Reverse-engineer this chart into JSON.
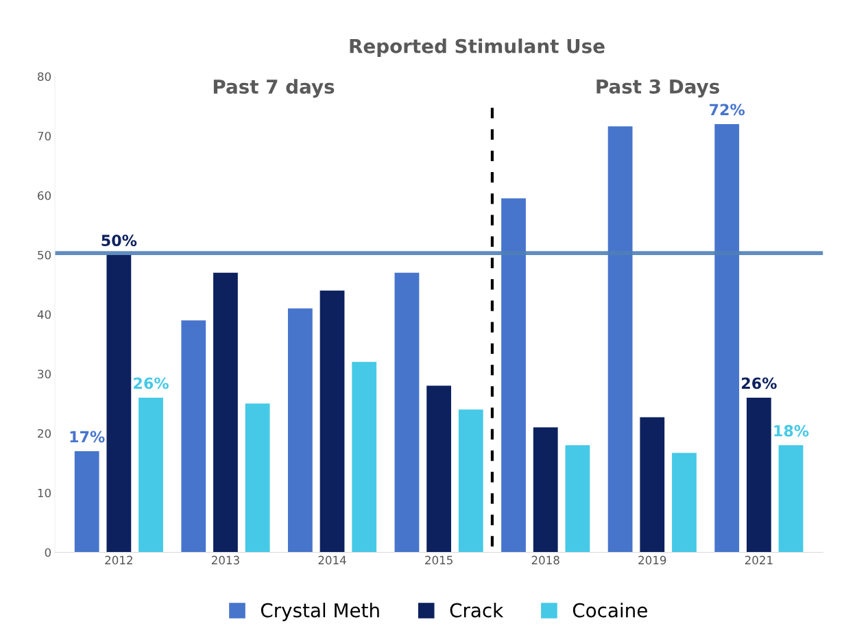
{
  "chart_data": {
    "type": "bar",
    "title": "Reported Stimulant Use",
    "categories": [
      "2012",
      "2013",
      "2014",
      "2015",
      "2018",
      "2019",
      "2021"
    ],
    "series": [
      {
        "name": "Crystal Meth",
        "color": "#4775cc",
        "values": [
          17,
          39,
          41,
          47,
          59.5,
          71.6,
          72
        ],
        "value_labels": [
          "17%",
          null,
          null,
          null,
          null,
          null,
          "72%"
        ]
      },
      {
        "name": "Crack",
        "color": "#0d215e",
        "values": [
          50,
          47,
          44,
          28,
          21,
          22.7,
          26
        ],
        "value_labels": [
          "50%",
          null,
          null,
          null,
          null,
          null,
          "26%"
        ]
      },
      {
        "name": "Cocaine",
        "color": "#45c9e6",
        "values": [
          26,
          25,
          32,
          24,
          18,
          16.7,
          18
        ],
        "value_labels": [
          "26%",
          null,
          null,
          null,
          null,
          null,
          "18%"
        ]
      }
    ],
    "ylim": [
      0,
      80
    ],
    "yticks": [
      0,
      10,
      20,
      30,
      40,
      50,
      60,
      70,
      80
    ],
    "grid": false,
    "legend": "bottom",
    "ref_lines": [
      {
        "axis": "y",
        "value": 50.3,
        "color": "#4f7fb8",
        "line_style": "solid"
      }
    ],
    "annotations": [
      "Past 7 days",
      "Past 3 Days"
    ]
  }
}
